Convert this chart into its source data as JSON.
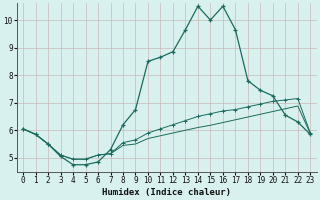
{
  "xlabel": "Humidex (Indice chaleur)",
  "bg_color": "#d8f0ee",
  "grid_color": "#c8b8b8",
  "line_color": "#1a6b5e",
  "xlim": [
    -0.5,
    23.5
  ],
  "ylim": [
    4.5,
    10.6
  ],
  "xticks": [
    0,
    1,
    2,
    3,
    4,
    5,
    6,
    7,
    8,
    9,
    10,
    11,
    12,
    13,
    14,
    15,
    16,
    17,
    18,
    19,
    20,
    21,
    22,
    23
  ],
  "yticks": [
    5,
    6,
    7,
    8,
    9,
    10
  ],
  "curve1_x": [
    0,
    1,
    2,
    3,
    4,
    5,
    6,
    7,
    8,
    9,
    10,
    11,
    12,
    13,
    14,
    15,
    16,
    17,
    18,
    19,
    20,
    21,
    22,
    23
  ],
  "curve1_y": [
    6.05,
    5.85,
    5.5,
    5.05,
    4.75,
    4.75,
    4.85,
    5.3,
    6.2,
    6.75,
    8.5,
    8.65,
    8.85,
    9.65,
    10.5,
    10.0,
    10.5,
    9.65,
    7.8,
    7.45,
    7.25,
    6.55,
    6.3,
    5.85
  ],
  "curve2_x": [
    0,
    1,
    2,
    3,
    4,
    5,
    6,
    7,
    8,
    9,
    10,
    11,
    12,
    13,
    14,
    15,
    16,
    17,
    18,
    19,
    20,
    21,
    22,
    23
  ],
  "curve2_y": [
    6.05,
    5.85,
    5.5,
    5.1,
    4.95,
    4.95,
    5.1,
    5.15,
    5.55,
    5.65,
    5.9,
    6.05,
    6.2,
    6.35,
    6.5,
    6.6,
    6.7,
    6.75,
    6.85,
    6.95,
    7.05,
    7.1,
    7.15,
    5.9
  ],
  "curve3_x": [
    0,
    1,
    2,
    3,
    4,
    5,
    6,
    7,
    8,
    9,
    10,
    11,
    12,
    13,
    14,
    15,
    16,
    17,
    18,
    19,
    20,
    21,
    22,
    23
  ],
  "curve3_y": [
    6.05,
    5.85,
    5.5,
    5.1,
    4.95,
    4.95,
    5.1,
    5.15,
    5.45,
    5.5,
    5.7,
    5.8,
    5.9,
    6.0,
    6.1,
    6.18,
    6.28,
    6.38,
    6.48,
    6.58,
    6.68,
    6.78,
    6.88,
    5.88
  ]
}
